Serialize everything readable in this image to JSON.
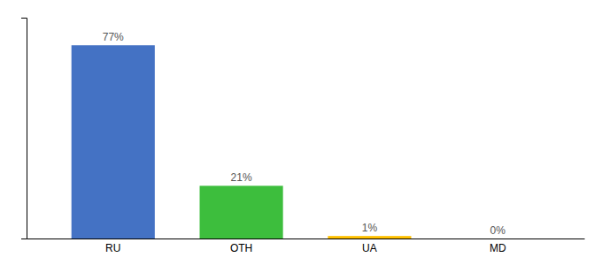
{
  "chart_data": {
    "type": "bar",
    "categories": [
      "RU",
      "OTH",
      "UA",
      "MD"
    ],
    "values": [
      77,
      21,
      1,
      0
    ],
    "value_labels": [
      "77%",
      "21%",
      "1%",
      "0%"
    ],
    "colors": [
      "#4472C4",
      "#3DBE3D",
      "#FFC000",
      "#B0B0B0"
    ],
    "ylim": [
      0,
      88
    ],
    "data_labels": true,
    "tick_labels": "x",
    "grid": false
  }
}
